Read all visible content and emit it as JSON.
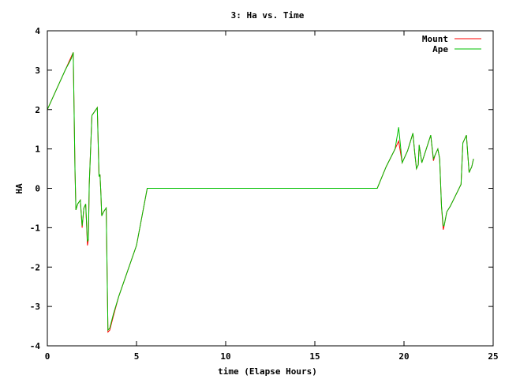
{
  "chart_data": {
    "type": "line",
    "title": "3: Ha vs. Time",
    "xlabel": "time (Elapse Hours)",
    "ylabel": "HA",
    "xlim": [
      0,
      25
    ],
    "ylim": [
      -4,
      4
    ],
    "xticks": [
      0,
      5,
      10,
      15,
      20,
      25
    ],
    "yticks": [
      -4,
      -3,
      -2,
      -1,
      0,
      1,
      2,
      3,
      4
    ],
    "grid": false,
    "legend_position": "top-right",
    "series": [
      {
        "name": "Mount",
        "color": "#ff0000",
        "x": [
          0,
          0.5,
          1.0,
          1.35,
          1.45,
          1.55,
          1.6,
          1.7,
          1.85,
          1.95,
          2.05,
          2.15,
          2.25,
          2.3,
          2.35,
          2.5,
          2.8,
          2.9,
          2.95,
          3.0,
          3.05,
          3.15,
          3.3,
          3.4,
          3.5,
          3.7,
          4.0,
          5.0,
          5.6,
          5.9,
          18.5,
          19.0,
          19.5,
          19.7,
          19.9,
          20.2,
          20.5,
          20.6,
          20.7,
          20.8,
          20.85,
          21.0,
          21.5,
          21.65,
          21.75,
          21.9,
          22.0,
          22.1,
          22.2,
          22.25,
          22.4,
          22.6,
          23.2,
          23.3,
          23.5,
          23.65,
          23.8,
          23.9
        ],
        "y": [
          2.0,
          2.5,
          3.0,
          3.35,
          3.45,
          0.5,
          -0.55,
          -0.4,
          -0.3,
          -1.0,
          -0.5,
          -0.4,
          -1.45,
          -1.3,
          0.1,
          1.85,
          2.05,
          0.3,
          0.35,
          -0.1,
          -0.7,
          -0.6,
          -0.5,
          -3.65,
          -3.6,
          -3.25,
          -2.75,
          -1.45,
          0.0,
          0.0,
          0.0,
          0.55,
          1.0,
          1.2,
          0.65,
          0.95,
          1.4,
          0.9,
          0.5,
          0.6,
          1.1,
          0.65,
          1.35,
          0.7,
          0.85,
          1.0,
          0.75,
          -0.45,
          -1.05,
          -0.95,
          -0.6,
          -0.45,
          0.1,
          1.15,
          1.35,
          0.4,
          0.55,
          0.75
        ]
      },
      {
        "name": "Ape",
        "color": "#00c000",
        "x": [
          0,
          0.5,
          1.0,
          1.35,
          1.45,
          1.55,
          1.6,
          1.7,
          1.85,
          1.95,
          2.05,
          2.15,
          2.25,
          2.3,
          2.35,
          2.5,
          2.8,
          2.9,
          2.95,
          3.0,
          3.05,
          3.15,
          3.3,
          3.4,
          3.5,
          3.7,
          4.0,
          5.0,
          5.6,
          5.9,
          18.5,
          19.0,
          19.5,
          19.7,
          19.9,
          20.2,
          20.5,
          20.6,
          20.7,
          20.8,
          20.85,
          21.0,
          21.5,
          21.65,
          21.75,
          21.9,
          22.0,
          22.1,
          22.2,
          22.25,
          22.4,
          22.6,
          23.2,
          23.3,
          23.5,
          23.65,
          23.8,
          23.9
        ],
        "y": [
          2.0,
          2.5,
          3.0,
          3.3,
          3.45,
          0.5,
          -0.55,
          -0.4,
          -0.3,
          -0.95,
          -0.5,
          -0.4,
          -1.35,
          -1.3,
          0.1,
          1.85,
          2.05,
          0.3,
          0.35,
          -0.1,
          -0.7,
          -0.6,
          -0.5,
          -3.6,
          -3.55,
          -3.2,
          -2.75,
          -1.45,
          0.0,
          0.0,
          0.0,
          0.55,
          1.0,
          1.55,
          0.65,
          0.95,
          1.4,
          0.9,
          0.5,
          0.6,
          1.1,
          0.65,
          1.35,
          0.75,
          0.85,
          1.0,
          0.75,
          -0.45,
          -0.95,
          -0.95,
          -0.6,
          -0.45,
          0.1,
          1.15,
          1.35,
          0.4,
          0.55,
          0.75
        ]
      }
    ]
  }
}
